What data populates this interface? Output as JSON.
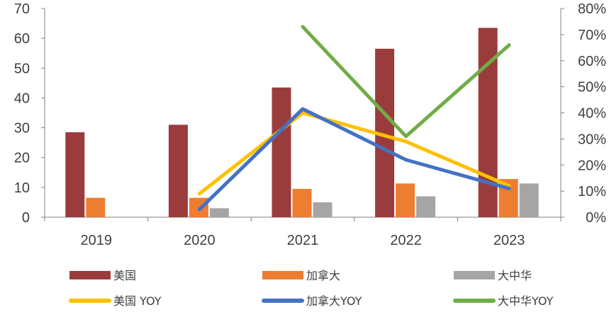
{
  "chart_data": {
    "type": "bar",
    "categories": [
      "2019",
      "2020",
      "2021",
      "2022",
      "2023"
    ],
    "series": [
      {
        "name": "美国",
        "kind": "bar",
        "axis": "left",
        "color": "#9B3C3C",
        "values": [
          28.5,
          31,
          43.5,
          56.5,
          63.5
        ]
      },
      {
        "name": "加拿大",
        "kind": "bar",
        "axis": "left",
        "color": "#ED7D31",
        "values": [
          6.5,
          6.5,
          9.5,
          11.3,
          12.8
        ]
      },
      {
        "name": "大中华",
        "kind": "bar",
        "axis": "left",
        "color": "#A5A5A5",
        "values": [
          null,
          3.0,
          5.0,
          7.0,
          11.3
        ]
      },
      {
        "name": "美国 YOY",
        "kind": "line",
        "axis": "right",
        "color": "#FFC000",
        "values": [
          null,
          0.09,
          0.4,
          0.29,
          0.12
        ]
      },
      {
        "name": "加拿大YOY",
        "kind": "line",
        "axis": "right",
        "color": "#4472C4",
        "values": [
          null,
          0.03,
          0.415,
          0.22,
          0.11
        ]
      },
      {
        "name": "大中华YOY",
        "kind": "line",
        "axis": "right",
        "color": "#70AD47",
        "values": [
          null,
          null,
          0.73,
          0.31,
          0.66
        ]
      }
    ],
    "ylim_left": [
      0,
      70
    ],
    "yticks_left": [
      "0",
      "10",
      "20",
      "30",
      "40",
      "50",
      "60",
      "70"
    ],
    "ylim_right": [
      0,
      0.8
    ],
    "yticks_right": [
      "0%",
      "10%",
      "20%",
      "30%",
      "40%",
      "50%",
      "60%",
      "70%",
      "80%"
    ],
    "grid": false,
    "legend_position": "bottom"
  }
}
